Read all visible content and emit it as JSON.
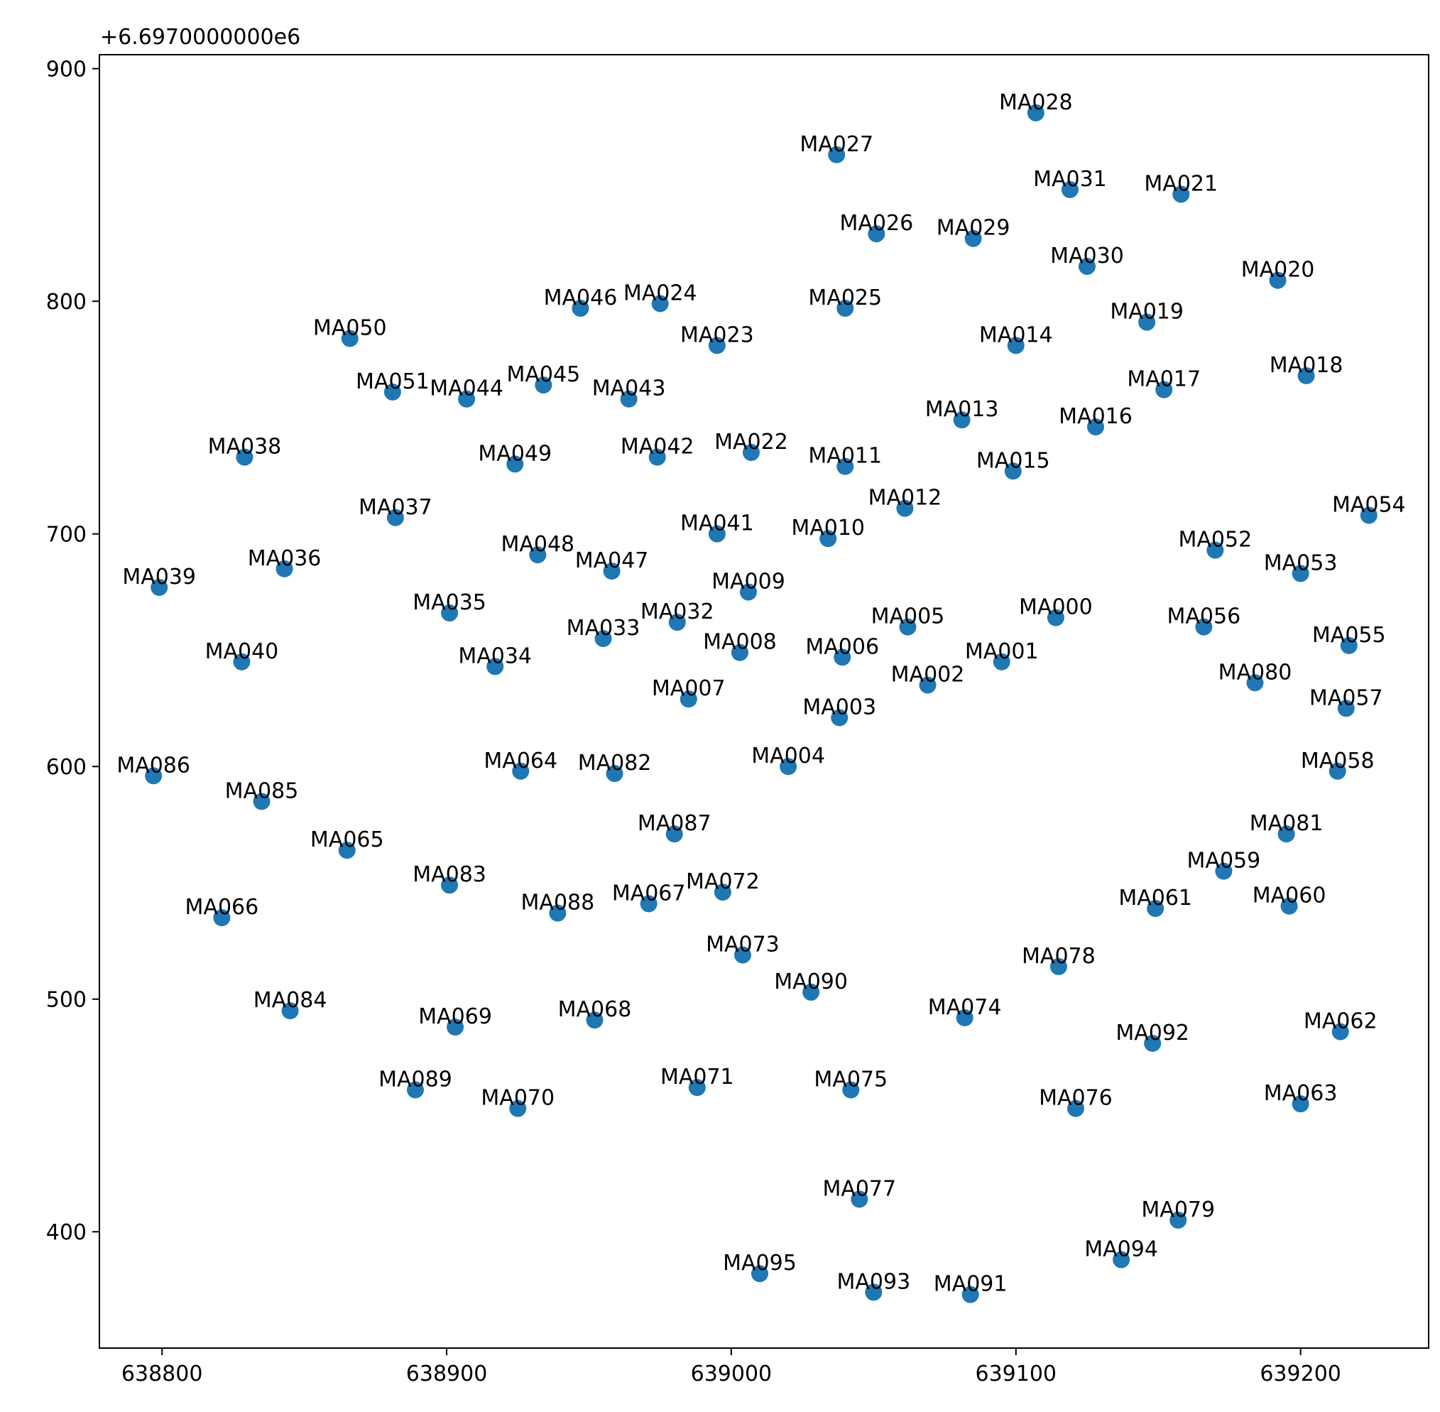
{
  "chart_data": {
    "type": "scatter",
    "title": "",
    "xlabel": "",
    "ylabel": "",
    "y_offset_label": "+6.6970000000e6",
    "y_offset": 6697000,
    "xlim": [
      638778,
      639245
    ],
    "ylim": [
      350,
      906
    ],
    "xticks": [
      638800,
      638900,
      639000,
      639100,
      639200
    ],
    "xtick_labels": [
      "638800",
      "638900",
      "639000",
      "639100",
      "639200"
    ],
    "yticks": [
      400,
      500,
      600,
      700,
      800,
      900
    ],
    "ytick_labels": [
      "400",
      "500",
      "600",
      "700",
      "800",
      "900"
    ],
    "marker_color": "#1f77b4",
    "grid": false,
    "points": [
      {
        "label": "MA000",
        "x": 639114,
        "y": 664
      },
      {
        "label": "MA001",
        "x": 639095,
        "y": 645
      },
      {
        "label": "MA002",
        "x": 639069,
        "y": 635
      },
      {
        "label": "MA003",
        "x": 639038,
        "y": 621
      },
      {
        "label": "MA004",
        "x": 639020,
        "y": 600
      },
      {
        "label": "MA005",
        "x": 639062,
        "y": 660
      },
      {
        "label": "MA006",
        "x": 639039,
        "y": 647
      },
      {
        "label": "MA007",
        "x": 638985,
        "y": 629
      },
      {
        "label": "MA008",
        "x": 639003,
        "y": 649
      },
      {
        "label": "MA009",
        "x": 639006,
        "y": 675
      },
      {
        "label": "MA010",
        "x": 639034,
        "y": 698
      },
      {
        "label": "MA011",
        "x": 639040,
        "y": 729
      },
      {
        "label": "MA012",
        "x": 639061,
        "y": 711
      },
      {
        "label": "MA013",
        "x": 639081,
        "y": 749
      },
      {
        "label": "MA014",
        "x": 639100,
        "y": 781
      },
      {
        "label": "MA015",
        "x": 639099,
        "y": 727
      },
      {
        "label": "MA016",
        "x": 639128,
        "y": 746
      },
      {
        "label": "MA017",
        "x": 639152,
        "y": 762
      },
      {
        "label": "MA018",
        "x": 639202,
        "y": 768
      },
      {
        "label": "MA019",
        "x": 639146,
        "y": 791
      },
      {
        "label": "MA020",
        "x": 639192,
        "y": 809
      },
      {
        "label": "MA021",
        "x": 639158,
        "y": 846
      },
      {
        "label": "MA022",
        "x": 639007,
        "y": 735
      },
      {
        "label": "MA023",
        "x": 638995,
        "y": 781
      },
      {
        "label": "MA024",
        "x": 638975,
        "y": 799
      },
      {
        "label": "MA025",
        "x": 639040,
        "y": 797
      },
      {
        "label": "MA026",
        "x": 639051,
        "y": 829
      },
      {
        "label": "MA027",
        "x": 639037,
        "y": 863
      },
      {
        "label": "MA028",
        "x": 639107,
        "y": 881
      },
      {
        "label": "MA029",
        "x": 639085,
        "y": 827
      },
      {
        "label": "MA030",
        "x": 639125,
        "y": 815
      },
      {
        "label": "MA031",
        "x": 639119,
        "y": 848
      },
      {
        "label": "MA032",
        "x": 638981,
        "y": 662
      },
      {
        "label": "MA033",
        "x": 638955,
        "y": 655
      },
      {
        "label": "MA034",
        "x": 638917,
        "y": 643
      },
      {
        "label": "MA035",
        "x": 638901,
        "y": 666
      },
      {
        "label": "MA036",
        "x": 638843,
        "y": 685
      },
      {
        "label": "MA037",
        "x": 638882,
        "y": 707
      },
      {
        "label": "MA038",
        "x": 638829,
        "y": 733
      },
      {
        "label": "MA039",
        "x": 638799,
        "y": 677
      },
      {
        "label": "MA040",
        "x": 638828,
        "y": 645
      },
      {
        "label": "MA041",
        "x": 638995,
        "y": 700
      },
      {
        "label": "MA042",
        "x": 638974,
        "y": 733
      },
      {
        "label": "MA043",
        "x": 638964,
        "y": 758
      },
      {
        "label": "MA044",
        "x": 638907,
        "y": 758
      },
      {
        "label": "MA045",
        "x": 638934,
        "y": 764
      },
      {
        "label": "MA046",
        "x": 638947,
        "y": 797
      },
      {
        "label": "MA047",
        "x": 638958,
        "y": 684
      },
      {
        "label": "MA048",
        "x": 638932,
        "y": 691
      },
      {
        "label": "MA049",
        "x": 638924,
        "y": 730
      },
      {
        "label": "MA050",
        "x": 638866,
        "y": 784
      },
      {
        "label": "MA051",
        "x": 638881,
        "y": 761
      },
      {
        "label": "MA052",
        "x": 639170,
        "y": 693
      },
      {
        "label": "MA053",
        "x": 639200,
        "y": 683
      },
      {
        "label": "MA054",
        "x": 639224,
        "y": 708
      },
      {
        "label": "MA055",
        "x": 639217,
        "y": 652
      },
      {
        "label": "MA056",
        "x": 639166,
        "y": 660
      },
      {
        "label": "MA057",
        "x": 639216,
        "y": 625
      },
      {
        "label": "MA058",
        "x": 639213,
        "y": 598
      },
      {
        "label": "MA059",
        "x": 639173,
        "y": 555
      },
      {
        "label": "MA060",
        "x": 639196,
        "y": 540
      },
      {
        "label": "MA061",
        "x": 639149,
        "y": 539
      },
      {
        "label": "MA062",
        "x": 639214,
        "y": 486
      },
      {
        "label": "MA063",
        "x": 639200,
        "y": 455
      },
      {
        "label": "MA064",
        "x": 638926,
        "y": 598
      },
      {
        "label": "MA065",
        "x": 638865,
        "y": 564
      },
      {
        "label": "MA066",
        "x": 638821,
        "y": 535
      },
      {
        "label": "MA067",
        "x": 638971,
        "y": 541
      },
      {
        "label": "MA068",
        "x": 638952,
        "y": 491
      },
      {
        "label": "MA069",
        "x": 638903,
        "y": 488
      },
      {
        "label": "MA070",
        "x": 638925,
        "y": 453
      },
      {
        "label": "MA071",
        "x": 638988,
        "y": 462
      },
      {
        "label": "MA072",
        "x": 638997,
        "y": 546
      },
      {
        "label": "MA073",
        "x": 639004,
        "y": 519
      },
      {
        "label": "MA074",
        "x": 639082,
        "y": 492
      },
      {
        "label": "MA075",
        "x": 639042,
        "y": 461
      },
      {
        "label": "MA076",
        "x": 639121,
        "y": 453
      },
      {
        "label": "MA077",
        "x": 639045,
        "y": 414
      },
      {
        "label": "MA078",
        "x": 639115,
        "y": 514
      },
      {
        "label": "MA079",
        "x": 639157,
        "y": 405
      },
      {
        "label": "MA080",
        "x": 639184,
        "y": 636
      },
      {
        "label": "MA081",
        "x": 639195,
        "y": 571
      },
      {
        "label": "MA082",
        "x": 638959,
        "y": 597
      },
      {
        "label": "MA083",
        "x": 638901,
        "y": 549
      },
      {
        "label": "MA084",
        "x": 638845,
        "y": 495
      },
      {
        "label": "MA085",
        "x": 638835,
        "y": 585
      },
      {
        "label": "MA086",
        "x": 638797,
        "y": 596
      },
      {
        "label": "MA087",
        "x": 638980,
        "y": 571
      },
      {
        "label": "MA088",
        "x": 638939,
        "y": 537
      },
      {
        "label": "MA089",
        "x": 638889,
        "y": 461
      },
      {
        "label": "MA090",
        "x": 639028,
        "y": 503
      },
      {
        "label": "MA091",
        "x": 639084,
        "y": 373
      },
      {
        "label": "MA092",
        "x": 639148,
        "y": 481
      },
      {
        "label": "MA093",
        "x": 639050,
        "y": 374
      },
      {
        "label": "MA094",
        "x": 639137,
        "y": 388
      },
      {
        "label": "MA095",
        "x": 639010,
        "y": 382
      }
    ]
  }
}
